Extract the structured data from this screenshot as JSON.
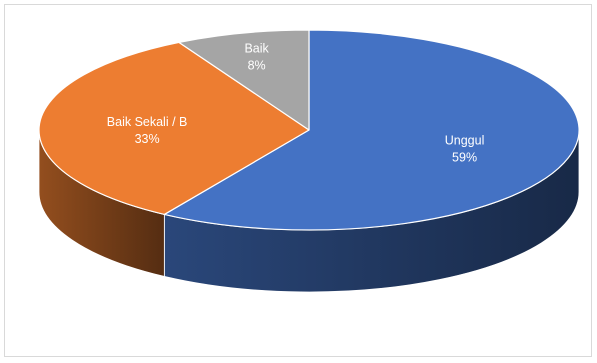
{
  "chart_data": {
    "type": "pie",
    "title": "",
    "categories": [
      "Unggul",
      "Baik Sekali / B",
      "Baik"
    ],
    "values": [
      59,
      33,
      8
    ],
    "labels": [
      "59%",
      "33%",
      "8%"
    ],
    "colors": [
      "#4472C4",
      "#ED7D31",
      "#A5A5A5"
    ],
    "legend": "none",
    "style": "3d"
  }
}
